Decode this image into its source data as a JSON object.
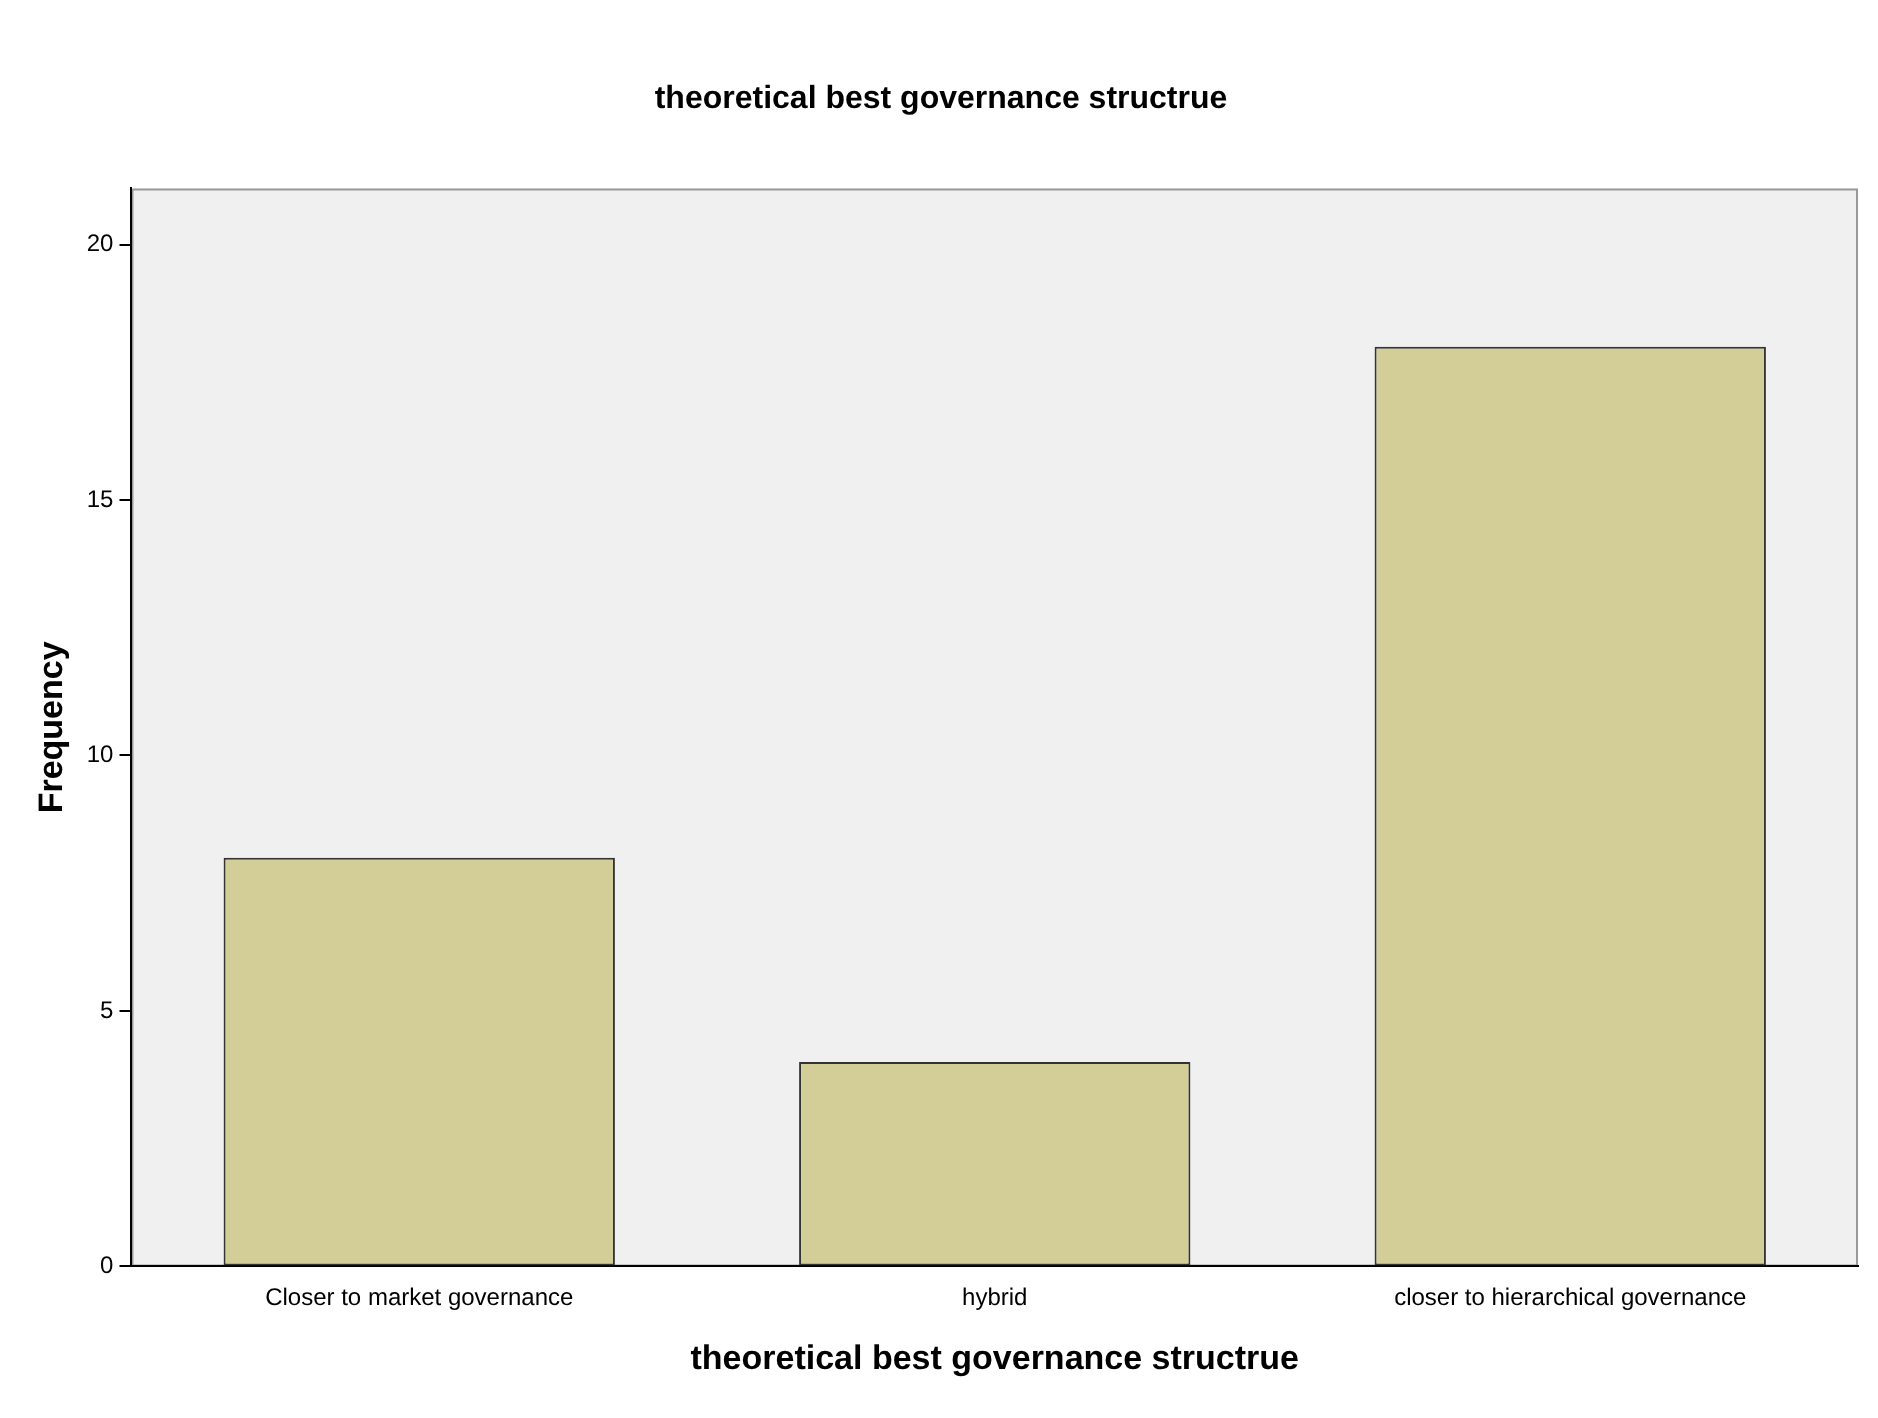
{
  "chart_data": {
    "type": "bar",
    "title": "theoretical best governance structrue",
    "xlabel": "theoretical best governance structrue",
    "ylabel": "Frequency",
    "categories": [
      "Closer to market governance",
      "hybrid",
      "closer to hierarchical governance"
    ],
    "values": [
      8,
      4,
      18
    ],
    "color": "#d3ce97",
    "ylim": [
      0,
      21.1
    ],
    "yticks": [
      0,
      5,
      10,
      15,
      20
    ],
    "grid": false,
    "legend": false
  }
}
